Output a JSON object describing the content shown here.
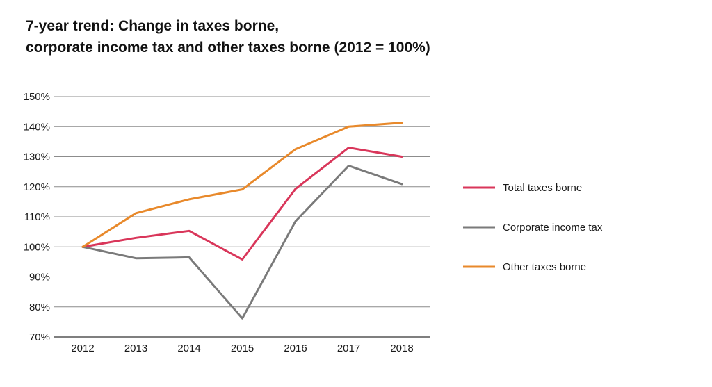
{
  "chart_data": {
    "type": "line",
    "title_lines": [
      "7-year trend: Change in taxes borne,",
      "corporate income tax and other taxes borne (2012 = 100%)"
    ],
    "x": [
      "2012",
      "2013",
      "2014",
      "2015",
      "2016",
      "2017",
      "2018"
    ],
    "ylim": [
      70,
      150
    ],
    "yticks": [
      70,
      80,
      90,
      100,
      110,
      120,
      130,
      140,
      150
    ],
    "ytick_labels": [
      "70%",
      "80%",
      "90%",
      "100%",
      "110%",
      "120%",
      "130%",
      "140%",
      "150%"
    ],
    "grid": "horizontal",
    "legend_position": "right",
    "series": [
      {
        "name": "Total taxes borne",
        "color": "#d9365a",
        "values": [
          100,
          103,
          105.3,
          95.8,
          119.3,
          133,
          130
        ]
      },
      {
        "name": "Corporate income tax",
        "color": "#7a7a7a",
        "values": [
          100,
          96.2,
          96.5,
          76.2,
          108.5,
          127,
          120.9
        ]
      },
      {
        "name": "Other taxes borne",
        "color": "#e8892b",
        "values": [
          100,
          111.2,
          115.8,
          119.1,
          132.5,
          140,
          141.3
        ]
      }
    ]
  }
}
